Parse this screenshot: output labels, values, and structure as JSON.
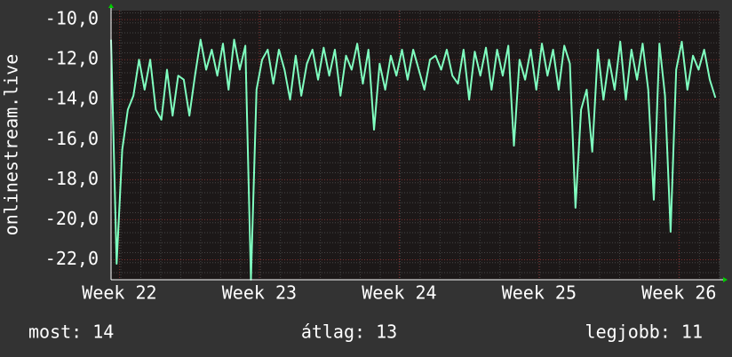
{
  "chart_data": {
    "type": "line",
    "y_label": "onlinestream.live",
    "x": [
      21.94,
      21.98,
      22.02,
      22.06,
      22.1,
      22.14,
      22.18,
      22.22,
      22.26,
      22.3,
      22.34,
      22.38,
      22.42,
      22.46,
      22.5,
      22.54,
      22.58,
      22.62,
      22.66,
      22.7,
      22.74,
      22.78,
      22.82,
      22.86,
      22.9,
      22.94,
      22.98,
      23.02,
      23.06,
      23.1,
      23.14,
      23.18,
      23.22,
      23.26,
      23.3,
      23.34,
      23.38,
      23.42,
      23.46,
      23.5,
      23.54,
      23.58,
      23.62,
      23.66,
      23.7,
      23.74,
      23.78,
      23.82,
      23.86,
      23.9,
      23.94,
      23.98,
      24.02,
      24.06,
      24.1,
      24.14,
      24.18,
      24.22,
      24.26,
      24.3,
      24.34,
      24.38,
      24.42,
      24.46,
      24.5,
      24.54,
      24.58,
      24.62,
      24.66,
      24.7,
      24.74,
      24.78,
      24.82,
      24.86,
      24.9,
      24.94,
      24.98,
      25.02,
      25.06,
      25.1,
      25.14,
      25.18,
      25.22,
      25.26,
      25.3,
      25.34,
      25.38,
      25.42,
      25.46,
      25.5,
      25.54,
      25.58,
      25.62,
      25.66,
      25.7,
      25.74,
      25.78,
      25.82,
      25.86,
      25.9,
      25.94,
      25.98,
      26.02,
      26.06,
      26.1,
      26.14,
      26.18,
      26.22,
      26.26
    ],
    "series": [
      {
        "color": "#80ffc0",
        "values": [
          -11.0,
          -22.2,
          -16.5,
          -14.5,
          -13.8,
          -12.0,
          -13.5,
          -12.0,
          -14.5,
          -15.0,
          -12.5,
          -14.8,
          -12.8,
          -13.0,
          -14.8,
          -12.8,
          -11.0,
          -12.5,
          -11.5,
          -12.8,
          -11.2,
          -13.5,
          -11.0,
          -12.5,
          -11.3,
          -23.0,
          -13.5,
          -12.0,
          -11.5,
          -13.2,
          -11.5,
          -12.5,
          -14.0,
          -11.8,
          -13.8,
          -12.2,
          -11.5,
          -13.0,
          -11.4,
          -12.8,
          -11.5,
          -13.8,
          -11.8,
          -12.5,
          -11.2,
          -13.2,
          -11.5,
          -15.5,
          -12.2,
          -13.5,
          -11.8,
          -12.8,
          -11.5,
          -13.0,
          -11.5,
          -12.5,
          -13.5,
          -12.0,
          -11.8,
          -12.5,
          -11.5,
          -12.8,
          -13.2,
          -11.5,
          -14.0,
          -11.6,
          -12.8,
          -11.4,
          -13.5,
          -11.5,
          -12.8,
          -11.3,
          -16.3,
          -12.0,
          -13.0,
          -11.5,
          -13.5,
          -11.2,
          -12.8,
          -11.5,
          -13.5,
          -11.3,
          -12.2,
          -19.4,
          -14.5,
          -13.5,
          -16.6,
          -11.5,
          -14.0,
          -12.0,
          -13.5,
          -11.1,
          -14.0,
          -11.5,
          -13.0,
          -11.2,
          -13.5,
          -19.0,
          -11.2,
          -13.8,
          -20.6,
          -12.5,
          -11.1,
          -13.5,
          -11.8,
          -12.5,
          -11.5,
          -13.0,
          -13.9
        ]
      }
    ],
    "xlim": [
      21.94,
      26.29
    ],
    "xticks": [
      {
        "value": 22,
        "label": "Week 22"
      },
      {
        "value": 23,
        "label": "Week 23"
      },
      {
        "value": 24,
        "label": "Week 24"
      },
      {
        "value": 25,
        "label": "Week 25"
      },
      {
        "value": 26,
        "label": "Week 26"
      }
    ],
    "ylim": [
      -23.0,
      -9.55
    ],
    "yticks": [
      {
        "value": -22,
        "label": "-22,0"
      },
      {
        "value": -20,
        "label": "-20,0"
      },
      {
        "value": -18,
        "label": "-18,0"
      },
      {
        "value": -16,
        "label": "-16,0"
      },
      {
        "value": -14,
        "label": "-14,0"
      },
      {
        "value": -12,
        "label": "-12,0"
      },
      {
        "value": -10,
        "label": "-10,0"
      }
    ],
    "grid": true,
    "stats": [
      "most: 14",
      "átlag: 13",
      "legjobb: 11"
    ]
  }
}
